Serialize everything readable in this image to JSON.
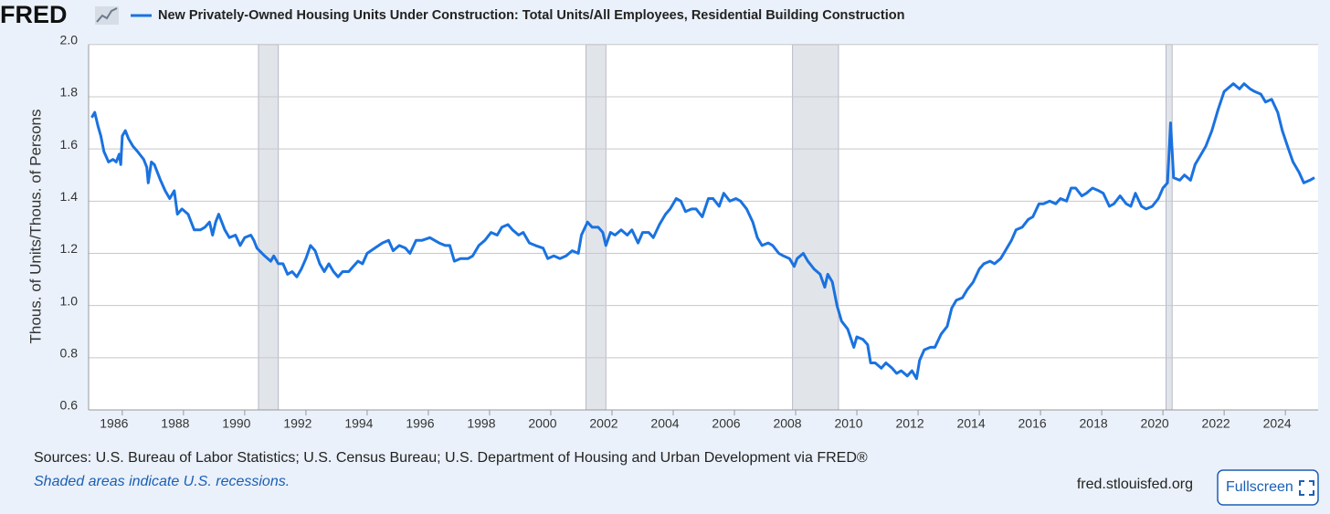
{
  "logo": "FRED",
  "sources": "Sources: U.S. Bureau of Labor Statistics; U.S. Census Bureau; U.S. Department of Housing and Urban Development via FRED®",
  "note": "Shaded areas indicate U.S. recessions.",
  "site": "fred.stlouisfed.org",
  "button": "Fullscreen",
  "chart_data": {
    "type": "line",
    "y_label": "Thous. of Units/Thous. of Persons",
    "xlim": [
      1984.9,
      2025.07
    ],
    "ylim": [
      0.6,
      2.0
    ],
    "xticks": [
      1986,
      1988,
      1990,
      1992,
      1994,
      1996,
      1998,
      2000,
      2002,
      2004,
      2006,
      2008,
      2010,
      2012,
      2014,
      2016,
      2018,
      2020,
      2022,
      2024
    ],
    "yticks": [
      {
        "value": 0.6,
        "label": "0.6"
      },
      {
        "value": 0.8,
        "label": "0.8"
      },
      {
        "value": 1.0,
        "label": "1.0"
      },
      {
        "value": 1.2,
        "label": "1.2"
      },
      {
        "value": 1.4,
        "label": "1.4"
      },
      {
        "value": 1.6,
        "label": "1.6"
      },
      {
        "value": 1.8,
        "label": "1.8"
      },
      {
        "value": 2.0,
        "label": "2.0"
      }
    ],
    "grid": true,
    "recessions": [
      [
        1990.45,
        1991.1
      ],
      [
        2001.15,
        2001.8
      ],
      [
        2007.9,
        2009.4
      ],
      [
        2020.1,
        2020.3
      ]
    ],
    "x": [
      1985.0,
      1985.1,
      1985.2,
      1985.3,
      1985.4,
      1985.55,
      1985.7,
      1985.8,
      1985.9,
      1985.95,
      1986.0,
      1986.1,
      1986.2,
      1986.35,
      1986.5,
      1986.7,
      1986.8,
      1986.85,
      1986.95,
      1987.05,
      1987.25,
      1987.4,
      1987.55,
      1987.7,
      1987.8,
      1987.95,
      1988.15,
      1988.35,
      1988.55,
      1988.7,
      1988.85,
      1988.95,
      1989.05,
      1989.15,
      1989.35,
      1989.5,
      1989.7,
      1989.85,
      1990.0,
      1990.2,
      1990.3,
      1990.4,
      1990.65,
      1990.85,
      1990.95,
      1991.1,
      1991.25,
      1991.4,
      1991.55,
      1991.7,
      1991.85,
      1992.0,
      1992.15,
      1992.3,
      1992.45,
      1992.6,
      1992.75,
      1992.9,
      1993.05,
      1993.2,
      1993.4,
      1993.55,
      1993.7,
      1993.85,
      1994.0,
      1994.25,
      1994.5,
      1994.7,
      1994.85,
      1995.05,
      1995.25,
      1995.4,
      1995.6,
      1995.8,
      1996.05,
      1996.2,
      1996.35,
      1996.55,
      1996.7,
      1996.85,
      1997.05,
      1997.3,
      1997.45,
      1997.65,
      1997.85,
      1998.05,
      1998.25,
      1998.4,
      1998.6,
      1998.75,
      1998.95,
      1999.1,
      1999.3,
      1999.5,
      1999.75,
      1999.9,
      2000.1,
      2000.3,
      2000.5,
      2000.7,
      2000.9,
      2001.0,
      2001.2,
      2001.35,
      2001.55,
      2001.7,
      2001.8,
      2001.95,
      2002.1,
      2002.3,
      2002.5,
      2002.65,
      2002.85,
      2003.0,
      2003.2,
      2003.35,
      2003.55,
      2003.75,
      2003.9,
      2004.1,
      2004.25,
      2004.4,
      2004.6,
      2004.75,
      2004.95,
      2005.15,
      2005.3,
      2005.5,
      2005.65,
      2005.85,
      2006.05,
      2006.2,
      2006.4,
      2006.6,
      2006.75,
      2006.9,
      2007.1,
      2007.25,
      2007.45,
      2007.6,
      2007.8,
      2007.95,
      2008.05,
      2008.25,
      2008.4,
      2008.6,
      2008.8,
      2008.95,
      2009.05,
      2009.2,
      2009.35,
      2009.5,
      2009.7,
      2009.9,
      2010.0,
      2010.2,
      2010.35,
      2010.45,
      2010.6,
      2010.8,
      2010.95,
      2011.15,
      2011.3,
      2011.45,
      2011.65,
      2011.8,
      2011.95,
      2012.05,
      2012.2,
      2012.4,
      2012.55,
      2012.75,
      2012.95,
      2013.1,
      2013.25,
      2013.45,
      2013.6,
      2013.8,
      2014.0,
      2014.15,
      2014.35,
      2014.5,
      2014.7,
      2014.85,
      2015.05,
      2015.2,
      2015.4,
      2015.6,
      2015.75,
      2015.95,
      2016.1,
      2016.3,
      2016.5,
      2016.65,
      2016.85,
      2017.0,
      2017.15,
      2017.35,
      2017.5,
      2017.7,
      2017.9,
      2018.05,
      2018.25,
      2018.4,
      2018.6,
      2018.8,
      2018.95,
      2019.1,
      2019.3,
      2019.45,
      2019.65,
      2019.85,
      2020.0,
      2020.15,
      2020.25,
      2020.35,
      2020.55,
      2020.7,
      2020.9,
      2021.05,
      2021.25,
      2021.4,
      2021.6,
      2021.8,
      2022.0,
      2022.1,
      2022.3,
      2022.5,
      2022.65,
      2022.85,
      2023.0,
      2023.2,
      2023.35,
      2023.55,
      2023.75,
      2023.9,
      2024.1,
      2024.25,
      2024.45,
      2024.6,
      2024.8,
      2024.95
    ],
    "series": [
      {
        "name": "New Privately-Owned Housing Units Under Construction: Total Units/All Employees, Residential Building Construction",
        "color": "#1a72e0",
        "values": [
          1.72,
          1.74,
          1.69,
          1.65,
          1.59,
          1.55,
          1.56,
          1.55,
          1.58,
          1.54,
          1.65,
          1.67,
          1.64,
          1.61,
          1.59,
          1.56,
          1.53,
          1.47,
          1.55,
          1.54,
          1.48,
          1.44,
          1.41,
          1.44,
          1.35,
          1.37,
          1.35,
          1.29,
          1.29,
          1.3,
          1.32,
          1.27,
          1.32,
          1.35,
          1.29,
          1.26,
          1.27,
          1.23,
          1.26,
          1.27,
          1.25,
          1.22,
          1.19,
          1.17,
          1.19,
          1.16,
          1.16,
          1.12,
          1.13,
          1.11,
          1.14,
          1.18,
          1.23,
          1.21,
          1.16,
          1.13,
          1.16,
          1.13,
          1.11,
          1.13,
          1.13,
          1.15,
          1.17,
          1.16,
          1.2,
          1.22,
          1.24,
          1.25,
          1.21,
          1.23,
          1.22,
          1.2,
          1.25,
          1.25,
          1.26,
          1.25,
          1.24,
          1.23,
          1.23,
          1.17,
          1.18,
          1.18,
          1.19,
          1.23,
          1.25,
          1.28,
          1.27,
          1.3,
          1.31,
          1.29,
          1.27,
          1.28,
          1.24,
          1.23,
          1.22,
          1.18,
          1.19,
          1.18,
          1.19,
          1.21,
          1.2,
          1.27,
          1.32,
          1.3,
          1.3,
          1.28,
          1.23,
          1.28,
          1.27,
          1.29,
          1.27,
          1.29,
          1.24,
          1.28,
          1.28,
          1.26,
          1.31,
          1.35,
          1.37,
          1.41,
          1.4,
          1.36,
          1.37,
          1.37,
          1.34,
          1.41,
          1.41,
          1.38,
          1.43,
          1.4,
          1.41,
          1.4,
          1.37,
          1.32,
          1.26,
          1.23,
          1.24,
          1.23,
          1.2,
          1.19,
          1.18,
          1.15,
          1.18,
          1.2,
          1.17,
          1.14,
          1.12,
          1.07,
          1.12,
          1.09,
          1.0,
          0.94,
          0.91,
          0.84,
          0.88,
          0.87,
          0.85,
          0.78,
          0.78,
          0.76,
          0.78,
          0.76,
          0.74,
          0.75,
          0.73,
          0.75,
          0.72,
          0.79,
          0.83,
          0.84,
          0.84,
          0.89,
          0.92,
          0.99,
          1.02,
          1.03,
          1.06,
          1.09,
          1.14,
          1.16,
          1.17,
          1.16,
          1.18,
          1.21,
          1.25,
          1.29,
          1.3,
          1.33,
          1.34,
          1.39,
          1.39,
          1.4,
          1.39,
          1.41,
          1.4,
          1.45,
          1.45,
          1.42,
          1.43,
          1.45,
          1.44,
          1.43,
          1.38,
          1.39,
          1.42,
          1.39,
          1.38,
          1.43,
          1.38,
          1.37,
          1.38,
          1.41,
          1.45,
          1.47,
          1.7,
          1.49,
          1.48,
          1.5,
          1.48,
          1.54,
          1.58,
          1.61,
          1.67,
          1.75,
          1.82,
          1.83,
          1.85,
          1.83,
          1.85,
          1.83,
          1.82,
          1.81,
          1.78,
          1.79,
          1.74,
          1.67,
          1.6,
          1.55,
          1.51,
          1.47,
          1.48,
          1.49
        ]
      }
    ]
  }
}
